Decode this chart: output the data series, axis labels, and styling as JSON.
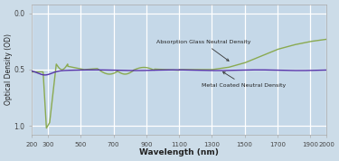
{
  "xlabel": "Wavelength (nm)",
  "ylabel": "Optical Density (OD)",
  "xlim": [
    200,
    2000
  ],
  "bg_color": "#ccdce8",
  "plot_bg_color": "#c5d8e8",
  "grid_color": "#e8f0f8",
  "purple_color": "#5533aa",
  "green_color": "#8aaa50",
  "annotation_glass": "Absorption Glass Neutral Density",
  "annotation_metal": "Metal Coated Neutral Density",
  "xtick_labels": [
    "200",
    "300",
    "500",
    "700",
    "900",
    "1100",
    "1300",
    "1500",
    "1700",
    "1900",
    "2000"
  ],
  "xtick_vals": [
    200,
    300,
    500,
    700,
    900,
    1100,
    1300,
    1500,
    1700,
    1900,
    2000
  ],
  "ytick_labels": [
    "0.0",
    "0.5",
    "1.0"
  ],
  "ytick_vals": [
    0.0,
    0.5,
    1.0
  ]
}
